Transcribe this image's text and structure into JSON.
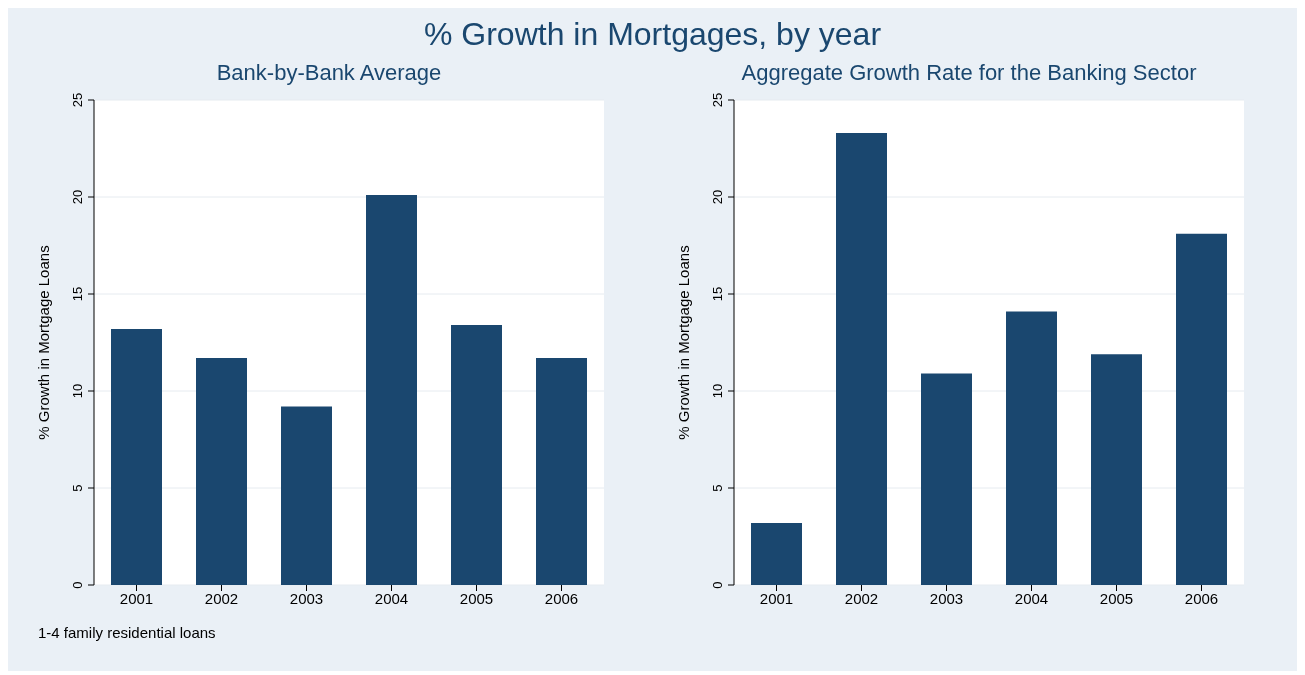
{
  "chart_data": [
    {
      "type": "bar",
      "title": "% Growth in Mortgages, by year",
      "subtitle": "Bank-by-Bank Average",
      "ylabel": "% Growth in Mortgage Loans",
      "categories": [
        "2001",
        "2002",
        "2003",
        "2004",
        "2005",
        "2006"
      ],
      "values": [
        13.2,
        11.7,
        9.2,
        20.1,
        13.4,
        11.7
      ],
      "color": "#1a476f",
      "ylim": [
        0,
        25
      ],
      "yticks": [
        0,
        5,
        10,
        15,
        20,
        25
      ],
      "grid": "y",
      "annotations": [
        "1-4 family residential loans"
      ]
    },
    {
      "type": "bar",
      "subtitle": "Aggregate Growth Rate for the Banking Sector",
      "ylabel": "% Growth in Mortgage Loans",
      "categories": [
        "2001",
        "2002",
        "2003",
        "2004",
        "2005",
        "2006"
      ],
      "values": [
        3.2,
        23.3,
        10.9,
        14.1,
        11.9,
        18.1
      ],
      "color": "#1a476f",
      "ylim": [
        0,
        25
      ],
      "yticks": [
        0,
        5,
        10,
        15,
        20,
        25
      ],
      "grid": "y"
    }
  ]
}
